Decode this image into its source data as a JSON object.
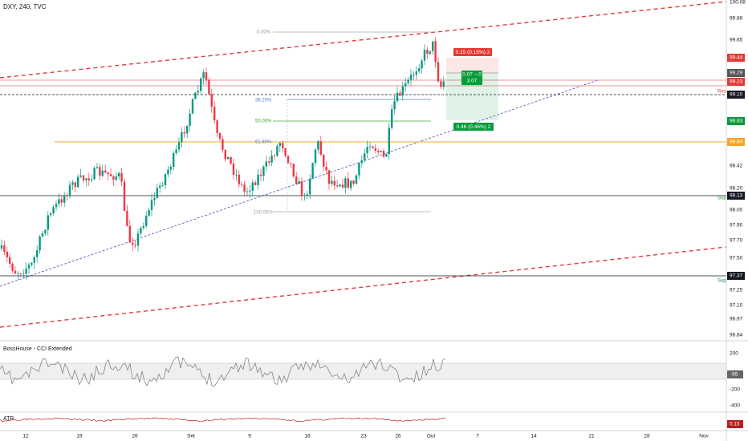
{
  "header": {
    "symbol": "DXY, 240, TVC"
  },
  "price_axis": {
    "labels": [
      "100.08",
      "99.86",
      "99.65",
      "98.42",
      "98.20",
      "98.00",
      "97.90",
      "97.70",
      "97.50",
      "97.25",
      "97.10",
      "96.97",
      "96.84"
    ],
    "tags": {
      "upper": "99.44",
      "last": "99.29",
      "red": "99.23",
      "res": "99.10",
      "target": "98.83",
      "fib": "98.64",
      "sup1": "98.13",
      "sup2": "97.37"
    }
  },
  "levels": {
    "res": "Res",
    "sup1": "Sup",
    "sup2": "Sup"
  },
  "fib": {
    "l0": "0.00%",
    "l382": "38.20%",
    "l50": "50.00%",
    "l618": "61.80%",
    "l100": "100.00%"
  },
  "position": {
    "stop": "0.15 (0.15%) 2",
    "ratio": "0.07 ~ 0",
    "rr": "3.07",
    "target": "0.46 (0.46%) 2"
  },
  "cci": {
    "title": "BossHouse - CCI Extended",
    "labels": [
      "200",
      "-200",
      "-400"
    ],
    "tag": "-55"
  },
  "atr": {
    "title": "ATR",
    "tag": "0.15"
  },
  "dates": [
    "12",
    "19",
    "26",
    "Set",
    "9",
    "16",
    "23",
    "26",
    "Out",
    "7",
    "14",
    "21",
    "28",
    "Nov"
  ]
}
